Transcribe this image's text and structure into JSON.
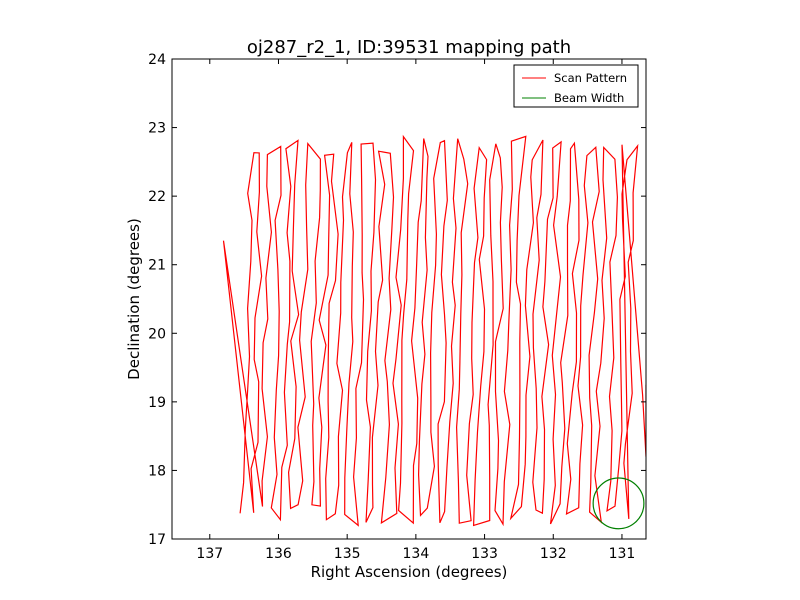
{
  "chart_data": {
    "type": "line",
    "title": "oj287_r2_1, ID:39531 mapping path",
    "xlabel": "Right Ascension (degrees)",
    "ylabel": "Declination (degrees)",
    "xlim": [
      137.55,
      130.65
    ],
    "ylim": [
      17,
      24
    ],
    "x_reversed": true,
    "xticks": [
      137,
      136,
      135,
      134,
      133,
      132,
      131
    ],
    "yticks": [
      17,
      18,
      19,
      20,
      21,
      22,
      23,
      24
    ],
    "grid": false,
    "legend_position": "top-right",
    "series": [
      {
        "name": "Scan Pattern",
        "color": "#ff0000",
        "x_start": 136.5,
        "x_end": 130.95,
        "sweeps": 42,
        "y_min": 17.35,
        "y_max": 22.7,
        "excursions": [
          {
            "x": 136.8,
            "y": 21.35
          },
          {
            "x": 131.0,
            "y": 22.75
          },
          {
            "x": 130.7,
            "y": 19.1
          },
          {
            "x": 130.65,
            "y": 18.2
          },
          {
            "x": 130.65,
            "y": 19.25
          }
        ]
      }
    ],
    "beam": {
      "name": "Beam Width",
      "color": "#008000",
      "center": {
        "x": 131.05,
        "y": 17.52
      },
      "radius_deg": 0.37
    }
  }
}
